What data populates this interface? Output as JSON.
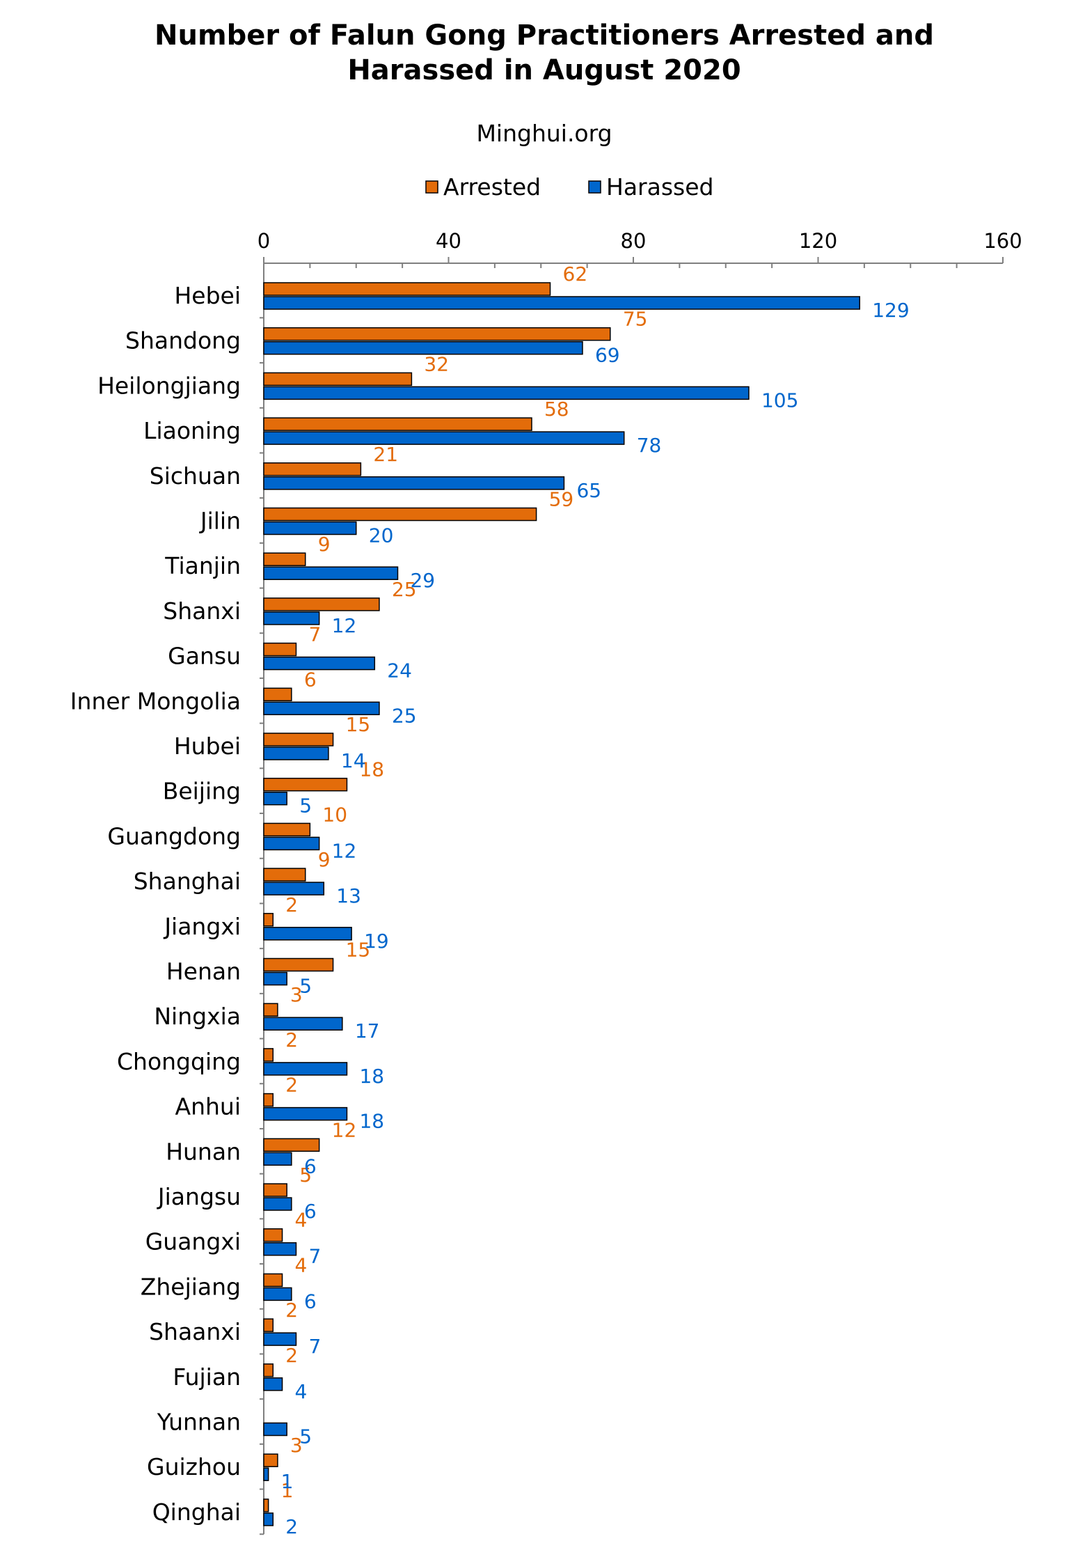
{
  "chart_data": {
    "type": "bar",
    "orientation": "horizontal",
    "title_lines": [
      "Number of Falun Gong Practitioners Arrested and",
      "Harassed in August 2020"
    ],
    "subtitle": "Minghui.org",
    "legend_position": "top",
    "xlim": [
      0,
      160
    ],
    "x_ticks": [
      0,
      40,
      80,
      120,
      160
    ],
    "grid": false,
    "categories": [
      "Hebei",
      "Shandong",
      "Heilongjiang",
      "Liaoning",
      "Sichuan",
      "Jilin",
      "Tianjin",
      "Shanxi",
      "Gansu",
      "Inner Mongolia",
      "Hubei",
      "Beijing",
      "Guangdong",
      "Shanghai",
      "Jiangxi",
      "Henan",
      "Ningxia",
      "Chongqing",
      "Anhui",
      "Hunan",
      "Jiangsu",
      "Guangxi",
      "Zhejiang",
      "Shaanxi",
      "Fujian",
      "Yunnan",
      "Guizhou",
      "Qinghai"
    ],
    "series": [
      {
        "name": "Arrested",
        "color": "#E36C0A",
        "label_color": "#E36C0A",
        "values": [
          62,
          75,
          32,
          58,
          21,
          59,
          9,
          25,
          7,
          6,
          15,
          18,
          10,
          9,
          2,
          15,
          3,
          2,
          2,
          12,
          5,
          4,
          4,
          2,
          2,
          null,
          3,
          1
        ]
      },
      {
        "name": "Harassed",
        "color": "#0066CC",
        "label_color": "#0066CC",
        "values": [
          129,
          69,
          105,
          78,
          65,
          20,
          29,
          12,
          24,
          25,
          14,
          5,
          12,
          13,
          19,
          5,
          17,
          18,
          18,
          6,
          6,
          7,
          6,
          7,
          4,
          5,
          1,
          2
        ]
      }
    ]
  }
}
